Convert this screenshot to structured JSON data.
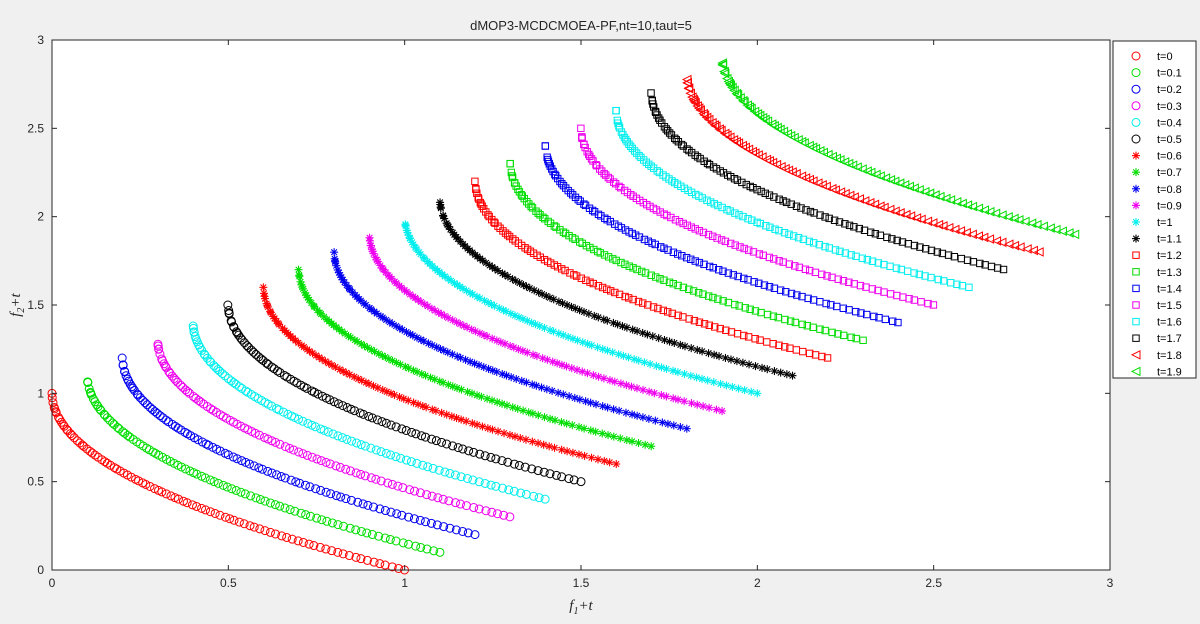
{
  "chart_data": {
    "type": "scatter",
    "title": "dMOP3-MCDCMOEA-PF,nt=10,taut=5",
    "xlabel_main": "f",
    "xlabel_sub": "1",
    "xlabel_suffix": "+t",
    "ylabel_main": "f",
    "ylabel_sub": "2",
    "ylabel_suffix": "+t",
    "xlim": [
      0,
      3
    ],
    "ylim": [
      0,
      3
    ],
    "xticks": [
      "0",
      "0.5",
      "1",
      "1.5",
      "2",
      "2.5",
      "3"
    ],
    "yticks": [
      "0",
      "0.5",
      "1",
      "1.5",
      "2",
      "2.5",
      "3"
    ],
    "grid": false,
    "legend_position": "outside right, top",
    "front": "f2 = 1 - sqrt(f1) for f1 in [0,1], shifted by t on both axes",
    "series": [
      {
        "name": "t=0",
        "t": 0.0,
        "marker": "circle",
        "color": "#ff0000"
      },
      {
        "name": "t=0.1",
        "t": 0.1,
        "marker": "circle",
        "color": "#00dd00"
      },
      {
        "name": "t=0.2",
        "t": 0.2,
        "marker": "circle",
        "color": "#0000ee"
      },
      {
        "name": "t=0.3",
        "t": 0.3,
        "marker": "circle",
        "color": "#ee00ee"
      },
      {
        "name": "t=0.4",
        "t": 0.4,
        "marker": "circle",
        "color": "#00eeee"
      },
      {
        "name": "t=0.5",
        "t": 0.5,
        "marker": "circle",
        "color": "#000000"
      },
      {
        "name": "t=0.6",
        "t": 0.6,
        "marker": "star",
        "color": "#ff0000"
      },
      {
        "name": "t=0.7",
        "t": 0.7,
        "marker": "star",
        "color": "#00dd00"
      },
      {
        "name": "t=0.8",
        "t": 0.8,
        "marker": "star",
        "color": "#0000ee"
      },
      {
        "name": "t=0.9",
        "t": 0.9,
        "marker": "star",
        "color": "#ee00ee"
      },
      {
        "name": "t=1",
        "t": 1.0,
        "marker": "star",
        "color": "#00eeee"
      },
      {
        "name": "t=1.1",
        "t": 1.1,
        "marker": "star",
        "color": "#000000"
      },
      {
        "name": "t=1.2",
        "t": 1.2,
        "marker": "square",
        "color": "#ff0000"
      },
      {
        "name": "t=1.3",
        "t": 1.3,
        "marker": "square",
        "color": "#00dd00"
      },
      {
        "name": "t=1.4",
        "t": 1.4,
        "marker": "square",
        "color": "#0000ee"
      },
      {
        "name": "t=1.5",
        "t": 1.5,
        "marker": "square",
        "color": "#ee00ee"
      },
      {
        "name": "t=1.6",
        "t": 1.6,
        "marker": "square",
        "color": "#00eeee"
      },
      {
        "name": "t=1.7",
        "t": 1.7,
        "marker": "square",
        "color": "#000000"
      },
      {
        "name": "t=1.8",
        "t": 1.8,
        "marker": "triangle-left",
        "color": "#ff0000"
      },
      {
        "name": "t=1.9",
        "t": 1.9,
        "marker": "triangle-left",
        "color": "#00dd00"
      }
    ]
  }
}
